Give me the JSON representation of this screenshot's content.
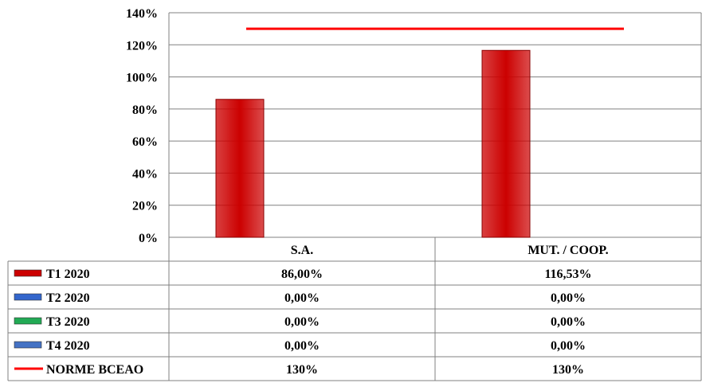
{
  "chart_data": {
    "type": "bar",
    "categories": [
      "S.A.",
      "MUT. / COOP."
    ],
    "series": [
      {
        "name": "T1 2020",
        "kind": "bar",
        "color": "#cc0000",
        "values": [
          86.0,
          116.53
        ],
        "labels": [
          "86,00%",
          "116,53%"
        ]
      },
      {
        "name": "T2 2020",
        "kind": "bar",
        "color": "#3366cc",
        "values": [
          0.0,
          0.0
        ],
        "labels": [
          "0,00%",
          "0,00%"
        ]
      },
      {
        "name": "T3 2020",
        "kind": "bar",
        "color": "#22aa55",
        "values": [
          0.0,
          0.0
        ],
        "labels": [
          "0,00%",
          "0,00%"
        ]
      },
      {
        "name": "T4 2020",
        "kind": "bar",
        "color": "#4472c4",
        "values": [
          0.0,
          0.0
        ],
        "labels": [
          "0,00%",
          "0,00%"
        ]
      },
      {
        "name": "NORME BCEAO",
        "kind": "line",
        "color": "#ff0000",
        "values": [
          130,
          130
        ],
        "labels": [
          "130%",
          "130%"
        ]
      }
    ],
    "y_ticks": [
      "0%",
      "20%",
      "40%",
      "60%",
      "80%",
      "100%",
      "120%",
      "140%"
    ],
    "ylim": [
      0,
      140
    ],
    "grid": true,
    "legend": "data-table"
  }
}
